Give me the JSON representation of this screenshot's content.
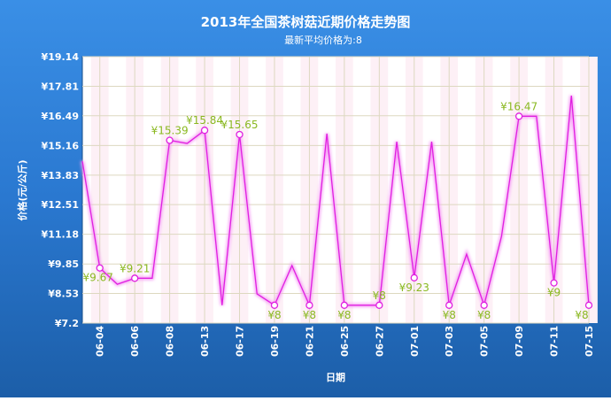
{
  "chart_data": {
    "type": "line",
    "title": "2013年全国茶树菇近期价格走势图",
    "subtitle": "最新平均价格为:8",
    "xlabel": "日期",
    "ylabel": "价格(元/公斤)",
    "ylim": [
      7.2,
      19.14
    ],
    "y_ticks": [
      "¥7.2",
      "¥8.53",
      "¥9.85",
      "¥11.18",
      "¥12.51",
      "¥13.83",
      "¥15.16",
      "¥16.49",
      "¥17.81",
      "¥19.14"
    ],
    "y_tick_values": [
      7.2,
      8.53,
      9.85,
      11.18,
      12.51,
      13.83,
      15.16,
      16.49,
      17.81,
      19.14
    ],
    "grid": true,
    "categories": [
      "",
      "06-04",
      "",
      "06-06",
      "",
      "06-08",
      "",
      "06-13",
      "",
      "06-17",
      "",
      "06-19",
      "",
      "06-21",
      "",
      "06-25",
      "",
      "06-27",
      "",
      "07-01",
      "",
      "07-03",
      "",
      "07-05",
      "",
      "07-09",
      "",
      "07-11",
      "",
      "07-15"
    ],
    "values": [
      14.46,
      9.67,
      8.94,
      9.21,
      9.21,
      15.39,
      15.25,
      15.84,
      8.0,
      15.65,
      8.51,
      8,
      9.78,
      8,
      15.69,
      8,
      8,
      8,
      15.33,
      9.23,
      15.33,
      8,
      10.29,
      8,
      11.09,
      16.47,
      16.47,
      9,
      17.39,
      8
    ],
    "data_labels": [
      null,
      "¥9.67",
      null,
      "¥9.21",
      null,
      "¥15.39",
      null,
      "¥15.84",
      null,
      "¥15.65",
      null,
      "¥8",
      null,
      "¥8",
      null,
      "¥8",
      null,
      "¥8",
      null,
      "¥9.23",
      null,
      "¥8",
      null,
      "¥8",
      null,
      "¥16.47",
      null,
      "¥9",
      null,
      "¥8"
    ],
    "colors": {
      "line": "#e020e0",
      "label": "#8ab820",
      "frame": "#2a78d0"
    }
  }
}
